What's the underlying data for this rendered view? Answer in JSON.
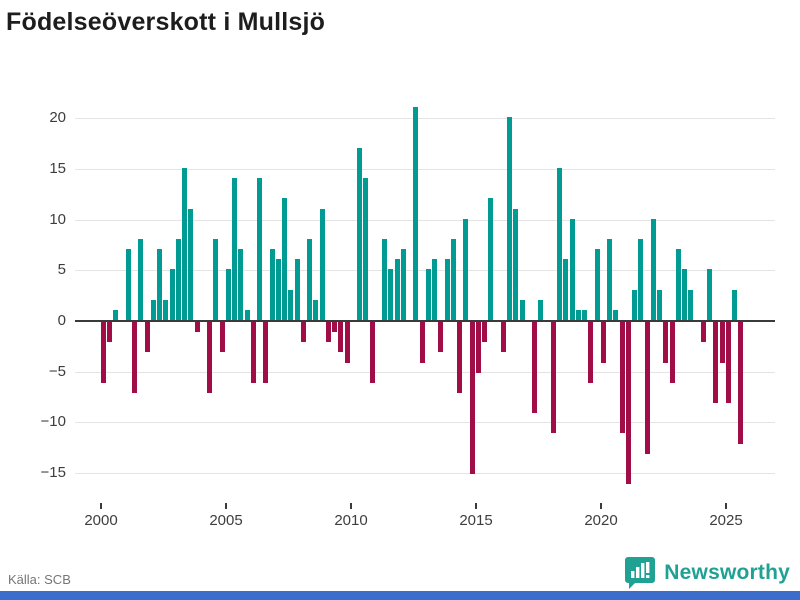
{
  "title": "Födelseöverskott i Mullsjö",
  "source": "Källa: SCB",
  "logo": {
    "text": "Newsworthy",
    "icon": "newsworthy-chart-bubble-icon"
  },
  "colors": {
    "positive": "#009b93",
    "negative": "#a00d47",
    "axis": "#3a3a3a",
    "grid": "#e4e4e4",
    "text": "#3d3d3d",
    "muted": "#767676",
    "logo_teal": "#1fa193",
    "bottom_bar": "#3d6dcc"
  },
  "chart_data": {
    "type": "bar",
    "title": "Födelseöverskott i Mullsjö",
    "xlabel": "",
    "ylabel": "",
    "period": "quarterly",
    "start": "2000 Q1",
    "end": "2025 Q3",
    "x_tick_labels": [
      "2000",
      "2005",
      "2010",
      "2015",
      "2020",
      "2025"
    ],
    "y_ticks": [
      20,
      15,
      10,
      5,
      0,
      -5,
      -10,
      -15
    ],
    "ylim": [
      -17.5,
      22
    ],
    "grid": true,
    "legend": false,
    "series": [
      {
        "name": "Födelseöverskott",
        "values_by_year": {
          "2000": [
            -6,
            -2,
            1,
            0
          ],
          "2001": [
            7,
            -7,
            8,
            -3
          ],
          "2002": [
            2,
            7,
            2,
            5
          ],
          "2003": [
            8,
            15,
            11,
            -1
          ],
          "2004": [
            0,
            -7,
            8,
            -3
          ],
          "2005": [
            5,
            14,
            7,
            1
          ],
          "2006": [
            -6,
            14,
            -6,
            7
          ],
          "2007": [
            6,
            12,
            3,
            6
          ],
          "2008": [
            -2,
            8,
            2,
            11
          ],
          "2009": [
            -2,
            -1,
            -3,
            -4
          ],
          "2010": [
            0,
            17,
            14,
            -6
          ],
          "2011": [
            0,
            8,
            5,
            6
          ],
          "2012": [
            7,
            0,
            21,
            -4
          ],
          "2013": [
            5,
            6,
            -3,
            6
          ],
          "2014": [
            8,
            -7,
            10,
            -15
          ],
          "2015": [
            -5,
            -2,
            12,
            0
          ],
          "2016": [
            -3,
            20,
            11,
            2
          ],
          "2017": [
            0,
            -9,
            2,
            0
          ],
          "2018": [
            -11,
            15,
            6,
            10
          ],
          "2019": [
            1,
            1,
            -6,
            7
          ],
          "2020": [
            -4,
            8,
            1,
            -11
          ],
          "2021": [
            -16,
            3,
            8,
            -13
          ],
          "2022": [
            10,
            3,
            -4,
            -6
          ],
          "2023": [
            7,
            5,
            3,
            0
          ],
          "2024": [
            -2,
            5,
            -8,
            -4
          ],
          "2025": [
            -8,
            3,
            -12
          ]
        }
      }
    ]
  },
  "layout_hints": {
    "minus_sign": "−"
  }
}
